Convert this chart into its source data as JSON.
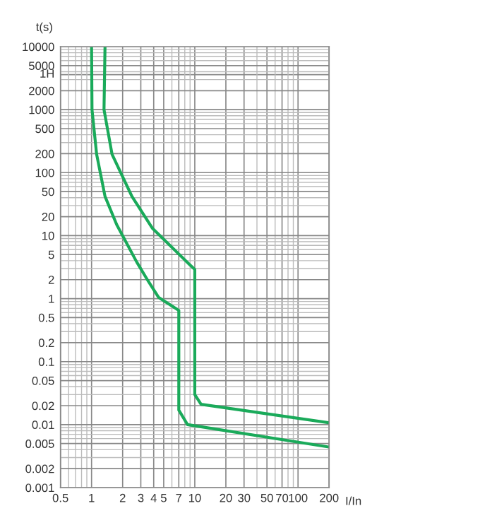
{
  "chart_data": {
    "type": "line",
    "xlabel": "I/In",
    "ylabel": "t(s)",
    "log": "xy",
    "grid": true,
    "marker": "none",
    "line_style": "solid",
    "xlim": [
      0.5,
      200
    ],
    "ylim": [
      0.001,
      10000
    ],
    "xticks": [
      0.5,
      1,
      2,
      3,
      4,
      5,
      7,
      10,
      20,
      30,
      50,
      70,
      100,
      200
    ],
    "yticks": [
      0.001,
      0.002,
      0.005,
      0.01,
      0.02,
      0.05,
      0.1,
      0.2,
      0.5,
      1,
      2,
      5,
      10,
      20,
      50,
      100,
      200,
      500,
      1000,
      2000,
      5000,
      10000
    ],
    "ref_lines": [
      {
        "axis": "y",
        "value": 3600,
        "label": "1H",
        "color": "#888888",
        "line_style": "solid"
      }
    ],
    "series": [
      {
        "color": "#1aaa5a",
        "x": [
          1.0,
          1.01,
          1.12,
          1.35,
          1.75,
          2.74,
          3.5,
          4.45,
          7,
          7,
          8.5,
          200
        ],
        "values": [
          10000,
          1000,
          195,
          42,
          15,
          3.8,
          1.95,
          1.05,
          0.65,
          0.017,
          0.01,
          0.0044
        ]
      },
      {
        "color": "#1aaa5a",
        "x": [
          1.35,
          1.32,
          1.58,
          2.46,
          3.9,
          8.7,
          10,
          10,
          11.5,
          200
        ],
        "values": [
          10000,
          1000,
          195,
          42,
          13,
          3.6,
          2.9,
          0.03,
          0.021,
          0.0107
        ]
      }
    ]
  }
}
